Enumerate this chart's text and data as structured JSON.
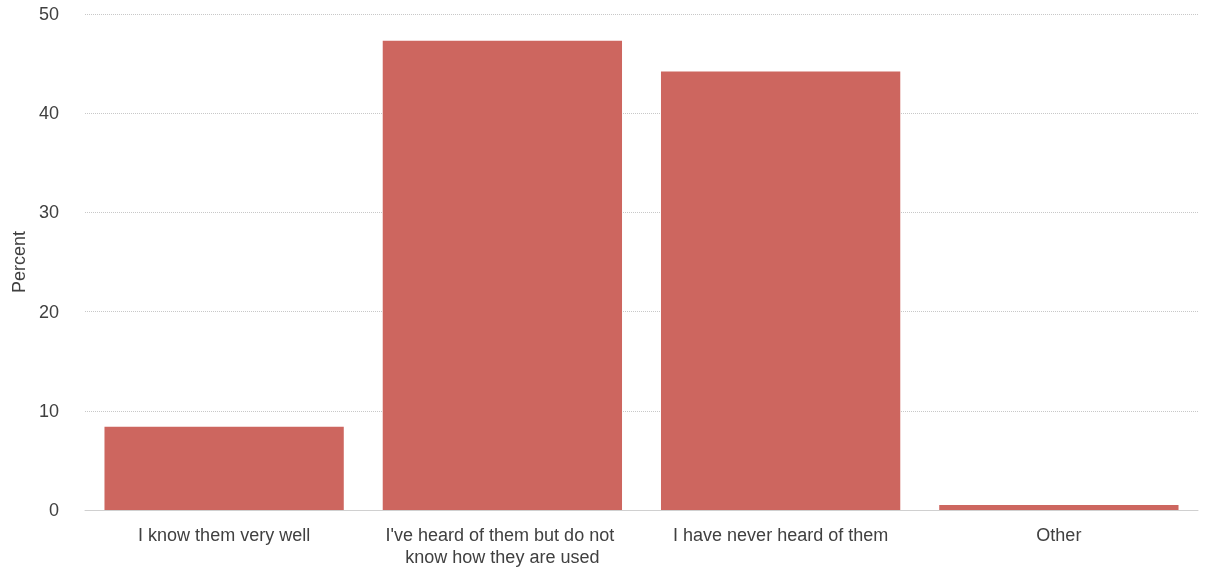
{
  "chart_data": {
    "type": "bar",
    "ylabel": "Percent",
    "categories": [
      "I know them very well",
      "I've heard of them but do not know how they are used",
      "I have never heard of them",
      "Other"
    ],
    "values": [
      8.4,
      47.3,
      44.2,
      0.5
    ],
    "color": "#cd665f",
    "ylim": [
      0,
      50
    ],
    "yticks": [
      0,
      10,
      20,
      30,
      40,
      50
    ],
    "grid": "y"
  }
}
